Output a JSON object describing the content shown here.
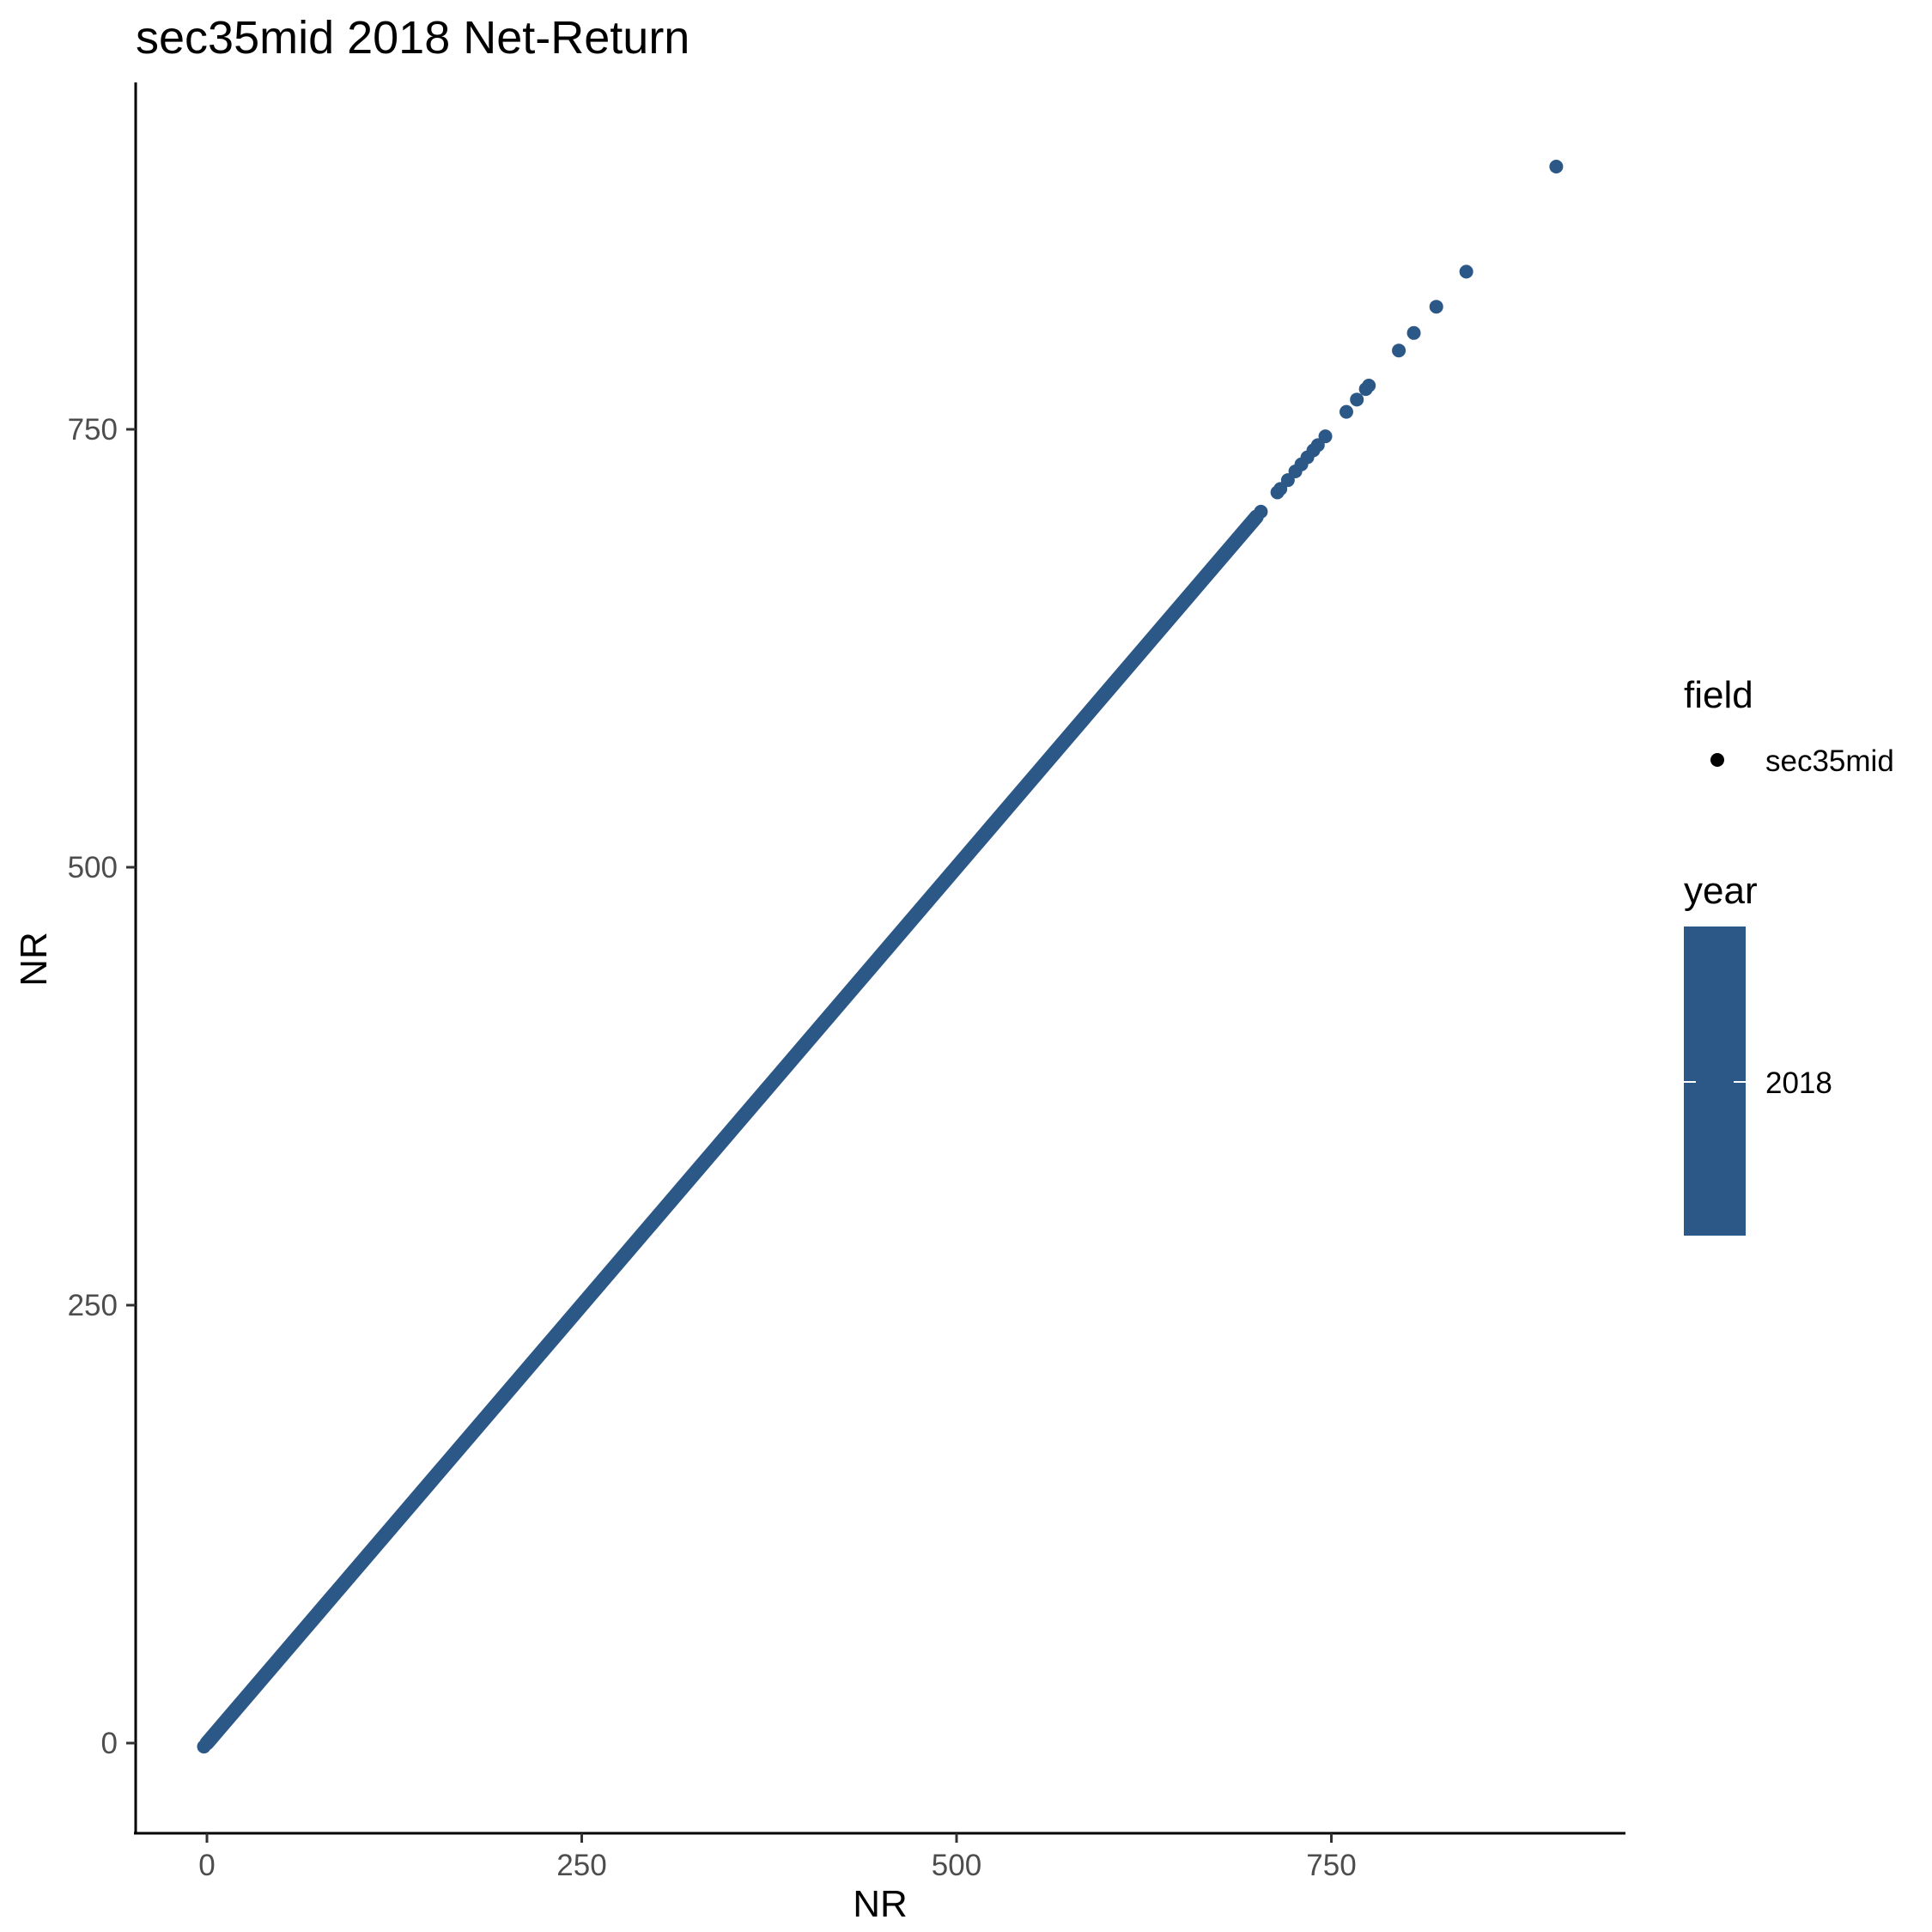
{
  "chart_data": {
    "type": "scatter",
    "title": "sec35mid 2018 Net-Return",
    "xlabel": "NR",
    "ylabel": "NR",
    "xlim": [
      -45,
      945
    ],
    "ylim": [
      -45,
      945
    ],
    "xticks": [
      0,
      250,
      500,
      750
    ],
    "yticks": [
      0,
      250,
      500,
      750
    ],
    "grid": false,
    "legend_placement": "right",
    "point_color": "#2C5887",
    "dense_segment": {
      "from": 0,
      "to": 700
    },
    "series": [
      {
        "name": "sec35mid",
        "x": [
          -2,
          0,
          6,
          8,
          12,
          16,
          20,
          25,
          30,
          700,
          703,
          714,
          716,
          721,
          726,
          730,
          734,
          738,
          741,
          746,
          760,
          767,
          773,
          775,
          795,
          805,
          820,
          840,
          900
        ],
        "y": [
          -2,
          0,
          6,
          8,
          12,
          16,
          20,
          25,
          30,
          700,
          703,
          714,
          716,
          721,
          726,
          730,
          734,
          738,
          741,
          746,
          760,
          767,
          773,
          775,
          795,
          805,
          820,
          840,
          900
        ]
      }
    ]
  },
  "legend": {
    "field_title": "field",
    "field_item": "sec35mid",
    "year_title": "year",
    "year_item": "2018"
  }
}
